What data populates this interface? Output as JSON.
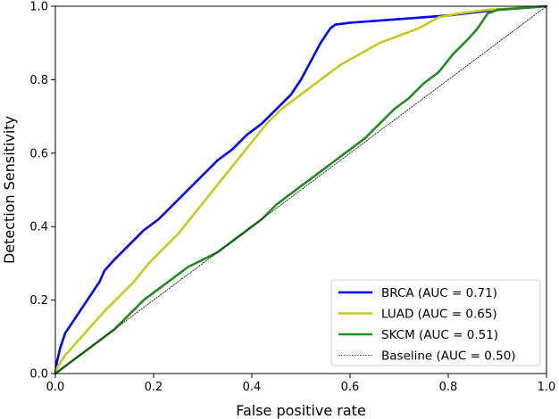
{
  "chart_data": {
    "type": "line",
    "title": "",
    "xlabel": "False positive rate",
    "ylabel": "Detection Sensitivity",
    "xlim": [
      0,
      1
    ],
    "ylim": [
      0,
      1
    ],
    "xticks": [
      "0.0",
      "0.2",
      "0.4",
      "0.6",
      "0.8",
      "1.0"
    ],
    "yticks": [
      "0.0",
      "0.2",
      "0.4",
      "0.6",
      "0.8",
      "1.0"
    ],
    "grid": false,
    "legend_position": "bottom-right",
    "series": [
      {
        "name": "BRCA (AUC = 0.71)",
        "color": "#0000ff",
        "style": "solid",
        "points": [
          [
            0,
            0
          ],
          [
            0.003,
            0.03
          ],
          [
            0.01,
            0.07
          ],
          [
            0.02,
            0.11
          ],
          [
            0.035,
            0.14
          ],
          [
            0.05,
            0.17
          ],
          [
            0.07,
            0.21
          ],
          [
            0.09,
            0.25
          ],
          [
            0.1,
            0.28
          ],
          [
            0.12,
            0.31
          ],
          [
            0.15,
            0.35
          ],
          [
            0.18,
            0.39
          ],
          [
            0.21,
            0.42
          ],
          [
            0.24,
            0.46
          ],
          [
            0.27,
            0.5
          ],
          [
            0.3,
            0.54
          ],
          [
            0.33,
            0.58
          ],
          [
            0.36,
            0.61
          ],
          [
            0.39,
            0.65
          ],
          [
            0.42,
            0.68
          ],
          [
            0.45,
            0.72
          ],
          [
            0.48,
            0.76
          ],
          [
            0.5,
            0.8
          ],
          [
            0.52,
            0.85
          ],
          [
            0.54,
            0.9
          ],
          [
            0.56,
            0.94
          ],
          [
            0.57,
            0.95
          ],
          [
            0.6,
            0.955
          ],
          [
            0.7,
            0.965
          ],
          [
            0.8,
            0.975
          ],
          [
            0.9,
            0.99
          ],
          [
            1.0,
            1.0
          ]
        ]
      },
      {
        "name": "LUAD (AUC = 0.65)",
        "color": "#c8c81e",
        "style": "solid",
        "points": [
          [
            0,
            0
          ],
          [
            0.005,
            0.02
          ],
          [
            0.02,
            0.05
          ],
          [
            0.04,
            0.08
          ],
          [
            0.06,
            0.11
          ],
          [
            0.08,
            0.14
          ],
          [
            0.1,
            0.17
          ],
          [
            0.13,
            0.21
          ],
          [
            0.16,
            0.25
          ],
          [
            0.19,
            0.3
          ],
          [
            0.22,
            0.34
          ],
          [
            0.25,
            0.38
          ],
          [
            0.28,
            0.43
          ],
          [
            0.31,
            0.48
          ],
          [
            0.34,
            0.53
          ],
          [
            0.37,
            0.58
          ],
          [
            0.4,
            0.63
          ],
          [
            0.43,
            0.68
          ],
          [
            0.46,
            0.72
          ],
          [
            0.5,
            0.76
          ],
          [
            0.54,
            0.8
          ],
          [
            0.58,
            0.84
          ],
          [
            0.62,
            0.87
          ],
          [
            0.66,
            0.9
          ],
          [
            0.7,
            0.92
          ],
          [
            0.74,
            0.94
          ],
          [
            0.78,
            0.97
          ],
          [
            0.82,
            0.98
          ],
          [
            0.88,
            0.99
          ],
          [
            0.94,
            0.995
          ],
          [
            1.0,
            1.0
          ]
        ]
      },
      {
        "name": "SKCM (AUC = 0.51)",
        "color": "#228b22",
        "style": "solid",
        "points": [
          [
            0,
            0
          ],
          [
            0.01,
            0.01
          ],
          [
            0.03,
            0.03
          ],
          [
            0.06,
            0.06
          ],
          [
            0.09,
            0.09
          ],
          [
            0.12,
            0.12
          ],
          [
            0.15,
            0.16
          ],
          [
            0.18,
            0.2
          ],
          [
            0.21,
            0.23
          ],
          [
            0.24,
            0.26
          ],
          [
            0.27,
            0.29
          ],
          [
            0.3,
            0.31
          ],
          [
            0.33,
            0.33
          ],
          [
            0.36,
            0.36
          ],
          [
            0.39,
            0.39
          ],
          [
            0.42,
            0.42
          ],
          [
            0.45,
            0.46
          ],
          [
            0.48,
            0.49
          ],
          [
            0.51,
            0.52
          ],
          [
            0.54,
            0.55
          ],
          [
            0.57,
            0.58
          ],
          [
            0.6,
            0.61
          ],
          [
            0.63,
            0.64
          ],
          [
            0.66,
            0.68
          ],
          [
            0.69,
            0.72
          ],
          [
            0.72,
            0.75
          ],
          [
            0.75,
            0.79
          ],
          [
            0.78,
            0.82
          ],
          [
            0.81,
            0.87
          ],
          [
            0.84,
            0.91
          ],
          [
            0.86,
            0.94
          ],
          [
            0.88,
            0.98
          ],
          [
            0.9,
            0.99
          ],
          [
            0.95,
            0.995
          ],
          [
            1.0,
            1.0
          ]
        ]
      },
      {
        "name": "Baseline (AUC = 0.50)",
        "color": "#000000",
        "style": "dotted",
        "points": [
          [
            0,
            0
          ],
          [
            1,
            1
          ]
        ]
      }
    ]
  }
}
